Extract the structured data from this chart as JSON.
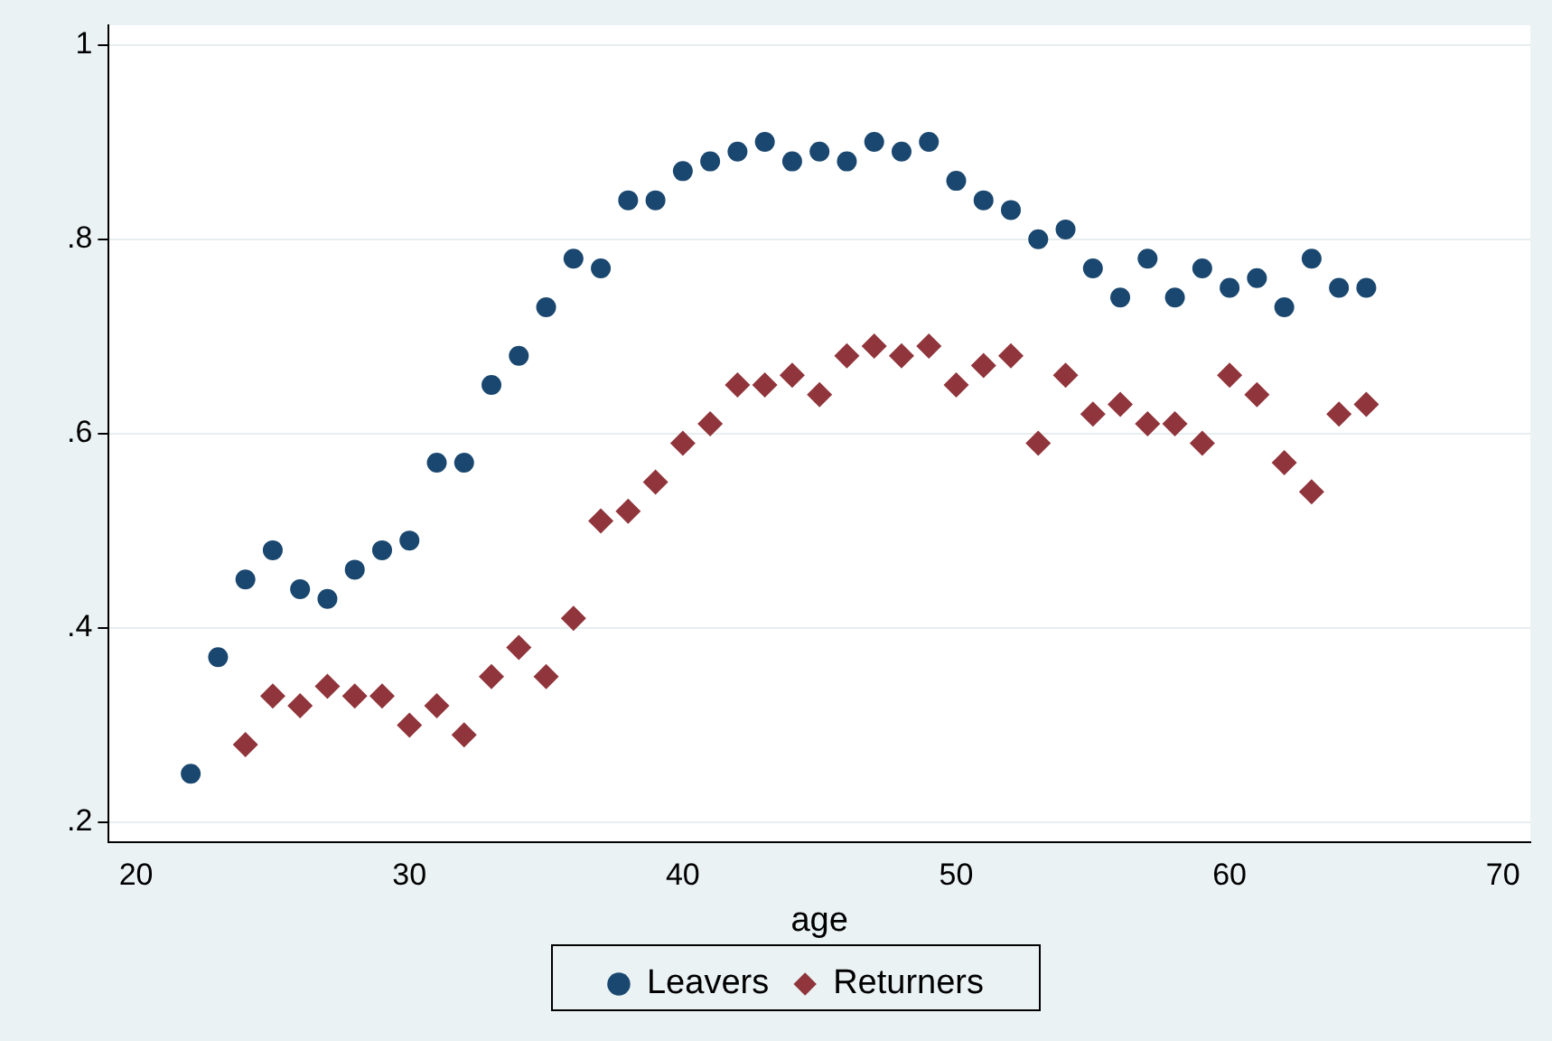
{
  "chart_data": {
    "type": "scatter",
    "xlabel": "age",
    "legend": "bottom",
    "grid": "y",
    "xlim": [
      19,
      71
    ],
    "xticks": [
      20,
      30,
      40,
      50,
      60,
      70
    ],
    "ylim": [
      0.18,
      1.02
    ],
    "yticks": [
      {
        "value": 0.2,
        "label": ".2"
      },
      {
        "value": 0.4,
        "label": ".4"
      },
      {
        "value": 0.6,
        "label": ".6"
      },
      {
        "value": 0.8,
        "label": ".8"
      },
      {
        "value": 1,
        "label": "1"
      }
    ],
    "series": [
      {
        "name": "Leavers",
        "color": "#1a476f",
        "marker": "circle",
        "x": [
          22,
          23,
          24,
          25,
          26,
          27,
          28,
          29,
          30,
          31,
          32,
          33,
          34,
          35,
          36,
          37,
          38,
          39,
          40,
          41,
          42,
          43,
          44,
          45,
          46,
          47,
          48,
          49,
          50,
          51,
          52,
          53,
          54,
          55,
          56,
          57,
          58,
          59,
          60,
          61,
          62,
          63,
          64,
          65
        ],
        "values": [
          0.25,
          0.37,
          0.45,
          0.48,
          0.44,
          0.43,
          0.46,
          0.48,
          0.49,
          0.57,
          0.57,
          0.65,
          0.68,
          0.73,
          0.78,
          0.77,
          0.84,
          0.84,
          0.87,
          0.88,
          0.89,
          0.9,
          0.88,
          0.89,
          0.88,
          0.9,
          0.89,
          0.9,
          0.86,
          0.84,
          0.83,
          0.8,
          0.81,
          0.77,
          0.74,
          0.78,
          0.74,
          0.77,
          0.75,
          0.76,
          0.73,
          0.78,
          0.75,
          0.75
        ]
      },
      {
        "name": "Returners",
        "color": "#90353b",
        "marker": "diamond",
        "x": [
          24,
          25,
          26,
          27,
          28,
          29,
          30,
          31,
          32,
          33,
          34,
          35,
          36,
          37,
          38,
          39,
          40,
          41,
          42,
          43,
          44,
          45,
          46,
          47,
          48,
          49,
          50,
          51,
          52,
          53,
          54,
          55,
          56,
          57,
          58,
          59,
          60,
          61,
          62,
          63,
          64,
          65
        ],
        "values": [
          0.28,
          0.33,
          0.32,
          0.34,
          0.33,
          0.33,
          0.3,
          0.32,
          0.29,
          0.35,
          0.38,
          0.35,
          0.41,
          0.51,
          0.52,
          0.55,
          0.59,
          0.61,
          0.65,
          0.65,
          0.66,
          0.64,
          0.68,
          0.69,
          0.68,
          0.69,
          0.65,
          0.67,
          0.68,
          0.59,
          0.66,
          0.62,
          0.63,
          0.61,
          0.61,
          0.59,
          0.66,
          0.64,
          0.57,
          0.54,
          0.62,
          0.63
        ]
      }
    ]
  }
}
